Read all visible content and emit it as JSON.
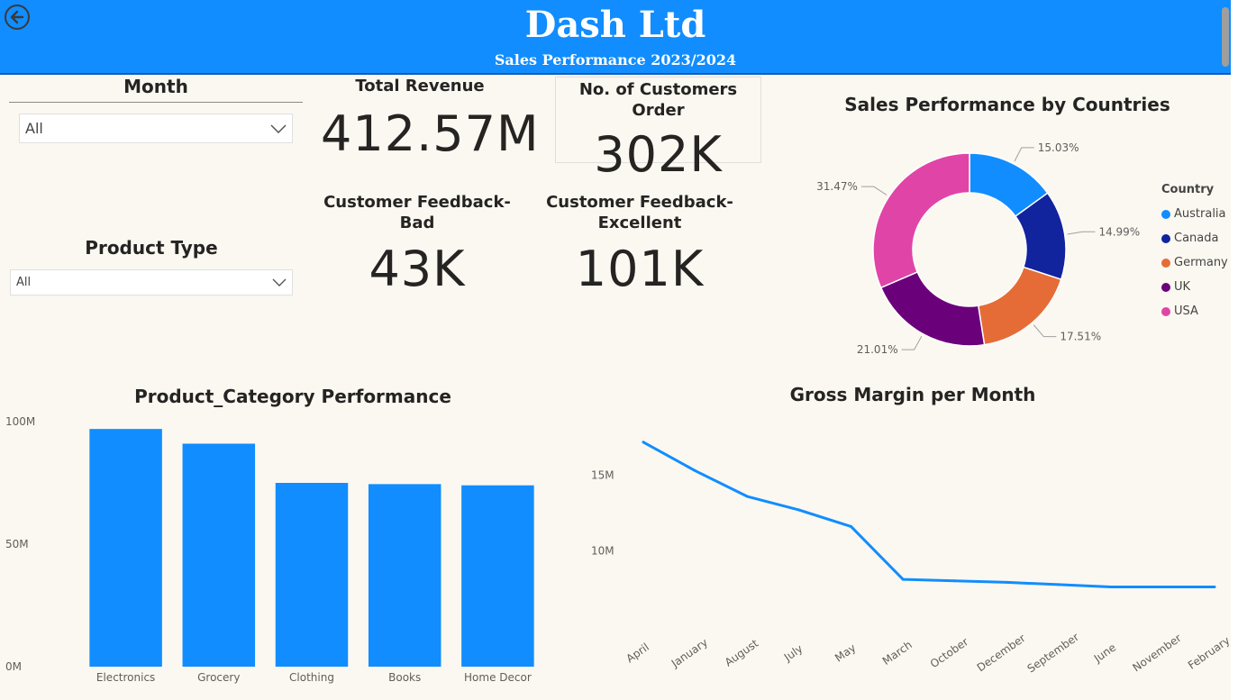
{
  "header": {
    "title": "Dash Ltd",
    "subtitle": "Sales Performance 2023/2024",
    "back_icon": "back-arrow-icon"
  },
  "slicers": {
    "month": {
      "title": "Month",
      "value": "All"
    },
    "product_type": {
      "title": "Product Type",
      "value": "All"
    }
  },
  "kpis": {
    "total_revenue": {
      "label": "Total Revenue",
      "value": "412.57M"
    },
    "customer_orders": {
      "label": "No. of Customers Order",
      "value": "302K"
    },
    "feedback_bad": {
      "label_line1": "Customer Feedback-",
      "label_line2": "Bad",
      "value": "43K"
    },
    "feedback_excellent": {
      "label_line1": "Customer Feedback-",
      "label_line2": "Excellent",
      "value": "101K"
    }
  },
  "chart_data": [
    {
      "type": "pie",
      "title": "Sales Performance by Countries",
      "legend_title": "Country",
      "legend_position": "right",
      "slices": [
        {
          "name": "Australia",
          "value": 15.03,
          "label": "15.03%",
          "color": "#118dff"
        },
        {
          "name": "Canada",
          "value": 14.99,
          "label": "14.99%",
          "color": "#12239e"
        },
        {
          "name": "Germany",
          "value": 17.51,
          "label": "17.51%",
          "color": "#e66c37"
        },
        {
          "name": "UK",
          "value": 21.01,
          "label": "21.01%",
          "color": "#6b007b"
        },
        {
          "name": "USA",
          "value": 31.47,
          "label": "31.47%",
          "color": "#e044a7"
        }
      ]
    },
    {
      "type": "bar",
      "title": "Product_Category Performance",
      "categories": [
        "Electronics",
        "Grocery",
        "Clothing",
        "Books",
        "Home Decor"
      ],
      "values": [
        97,
        91,
        75,
        74.5,
        74
      ],
      "unit": "M",
      "ylim": [
        0,
        100
      ],
      "yticks": [
        0,
        50,
        100
      ],
      "ytick_labels": [
        "0M",
        "50M",
        "100M"
      ],
      "color": "#118dff"
    },
    {
      "type": "line",
      "title": "Gross Margin per Month",
      "categories": [
        "April",
        "January",
        "August",
        "July",
        "May",
        "March",
        "October",
        "December",
        "September",
        "June",
        "November",
        "February"
      ],
      "values": [
        17.2,
        15.3,
        13.6,
        12.7,
        11.6,
        8.1,
        8.0,
        7.9,
        7.75,
        7.6,
        7.6,
        7.6
      ],
      "unit": "M",
      "ylim": [
        4.4,
        18.5
      ],
      "yticks": [
        10,
        15
      ],
      "ytick_labels": [
        "10M",
        "15M"
      ],
      "color": "#118dff"
    }
  ]
}
